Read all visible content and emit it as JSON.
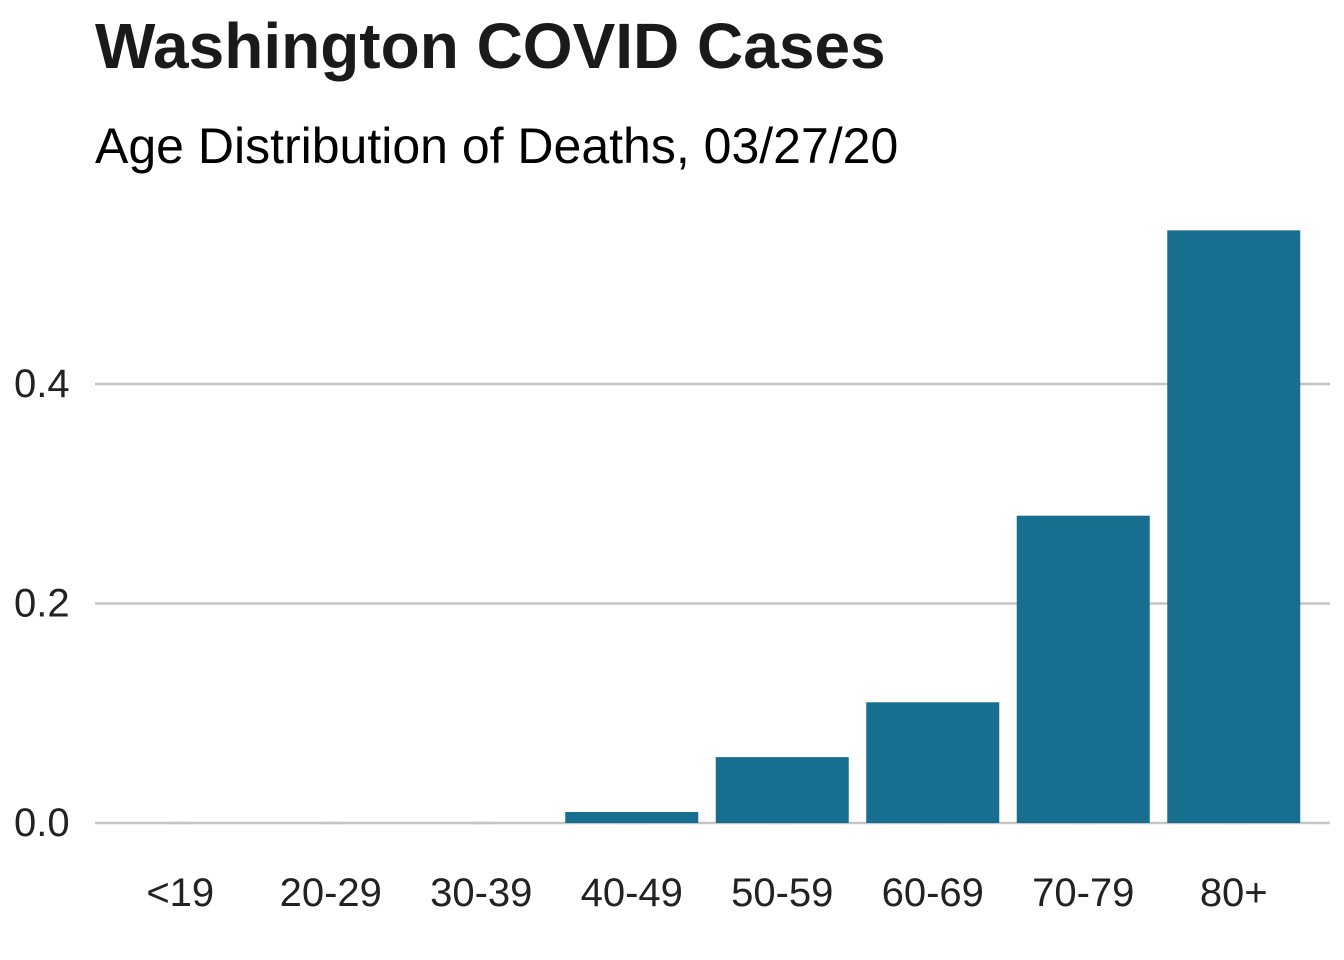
{
  "chart_data": {
    "type": "bar",
    "title": "Washington COVID Cases",
    "subtitle": "Age Distribution of Deaths, 03/27/20",
    "xlabel": "",
    "ylabel": "",
    "categories": [
      "<19",
      "20-29",
      "30-39",
      "40-49",
      "50-59",
      "60-69",
      "70-79",
      "80+"
    ],
    "values": [
      0.0,
      0.0,
      0.0,
      0.01,
      0.06,
      0.11,
      0.28,
      0.54
    ],
    "ylim": [
      0,
      0.56
    ],
    "yticks": [
      0.0,
      0.2,
      0.4
    ],
    "ytick_labels": [
      "0.0",
      "0.2",
      "0.4"
    ],
    "grid": "horizontal",
    "legend": "none",
    "bar_color": "#176e8f",
    "grid_color": "#c4c4c4"
  }
}
